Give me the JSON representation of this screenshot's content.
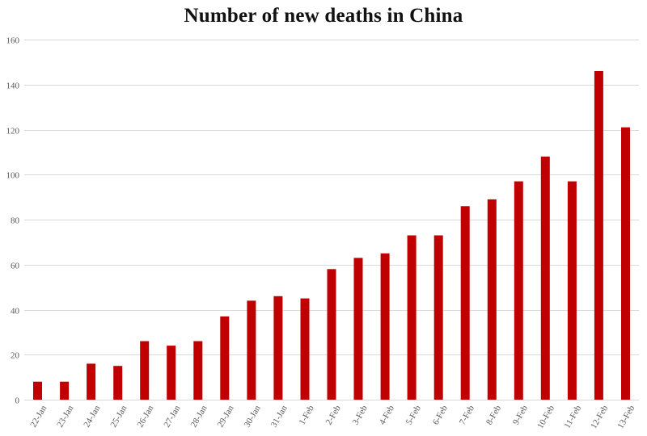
{
  "chart_data": {
    "type": "bar",
    "title": "Number of new deaths in China",
    "xlabel": "",
    "ylabel": "",
    "categories": [
      "22-Jan",
      "23-Jan",
      "24-Jan",
      "25-Jan",
      "26-Jan",
      "27-Jan",
      "28-Jan",
      "29-Jan",
      "30-Jan",
      "31-Jan",
      "1-Feb",
      "2-Feb",
      "3-Feb",
      "4-Feb",
      "5-Feb",
      "6-Feb",
      "7-Feb",
      "8-Feb",
      "9-Feb",
      "10-Feb",
      "11-Feb",
      "12-Feb",
      "13-Feb"
    ],
    "values": [
      8,
      8,
      16,
      15,
      26,
      24,
      26,
      37,
      44,
      46,
      45,
      58,
      63,
      65,
      73,
      73,
      86,
      89,
      97,
      108,
      97,
      146,
      121
    ],
    "ylim": [
      0,
      160
    ],
    "yticks": [
      0,
      20,
      40,
      60,
      80,
      100,
      120,
      140,
      160
    ],
    "grid": true,
    "legend": "none",
    "bar_color": "#c00000"
  }
}
